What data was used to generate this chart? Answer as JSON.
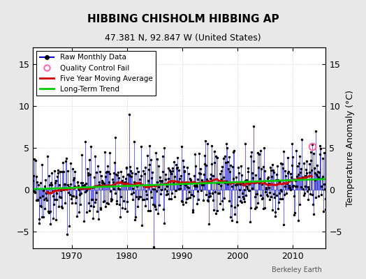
{
  "title": "HIBBING CHISHOLM HIBBING AP",
  "subtitle": "47.381 N, 92.847 W (United States)",
  "ylabel": "Temperature Anomaly (°C)",
  "credit": "Berkeley Earth",
  "year_start": 1963,
  "year_end": 2016,
  "ylim": [
    -7,
    17
  ],
  "yticks": [
    -5,
    0,
    5,
    10,
    15
  ],
  "bg_color": "#e8e8e8",
  "plot_bg_color": "#ffffff",
  "raw_line_color": "#0000cc",
  "raw_marker_color": "#000000",
  "moving_avg_color": "#cc0000",
  "trend_color": "#00cc00",
  "qc_fail_color": "#ff69b4",
  "seed": 42
}
